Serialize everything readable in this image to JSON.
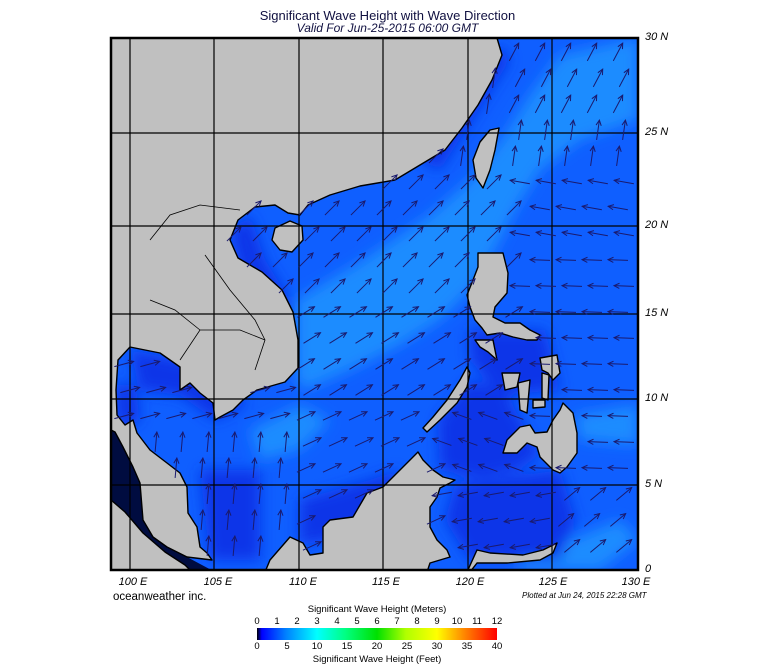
{
  "header": {
    "title": "Significant Wave Height with Wave Direction",
    "subtitle": "Valid For Jun-25-2015 06:00 GMT"
  },
  "map": {
    "longitude_labels": [
      "100 E",
      "105 E",
      "110 E",
      "115 E",
      "120 E",
      "125 E",
      "130 E"
    ],
    "latitude_labels": [
      "30 N",
      "25 N",
      "20 N",
      "15 N",
      "10 N",
      "5 N",
      "0"
    ],
    "colors": {
      "land": "#c0c0c0",
      "coastline": "#000000",
      "ocean_low": "#0a34e8",
      "ocean_mid": "#0f5fff",
      "ocean_high": "#1a8cff",
      "ocean_calm": "#000c40",
      "arrow": "#1a1a6e"
    }
  },
  "footer": {
    "credit": "oceanweather inc.",
    "plotted": "Plotted at Jun 24, 2015 22:28 GMT"
  },
  "colorbar": {
    "meters_title": "Significant Wave Height (Meters)",
    "meters_ticks": [
      "0",
      "1",
      "2",
      "3",
      "4",
      "5",
      "6",
      "7",
      "8",
      "9",
      "10",
      "11",
      "12"
    ],
    "feet_title": "Significant Wave Height (Feet)",
    "feet_ticks": [
      "0",
      "5",
      "10",
      "15",
      "20",
      "25",
      "30",
      "35",
      "40"
    ],
    "range_meters": [
      0,
      12
    ],
    "range_feet": [
      0,
      40
    ],
    "colors": [
      "#000000",
      "#0000ff",
      "#0080ff",
      "#00ffff",
      "#00ff80",
      "#00e000",
      "#b0ff00",
      "#ffff00",
      "#ff8000",
      "#ff0000"
    ]
  }
}
